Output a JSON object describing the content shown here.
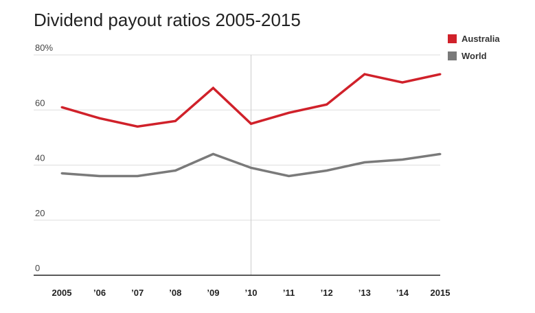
{
  "chart_data": {
    "type": "line",
    "title": "Dividend payout ratios 2005-2015",
    "xlabel": "",
    "ylabel": "",
    "categories": [
      "2005",
      "’06",
      "’07",
      "’08",
      "’09",
      "’10",
      "’11",
      "’12",
      "’13",
      "’14",
      "2015"
    ],
    "ylim": [
      0,
      80
    ],
    "yticks": [
      {
        "value": 0,
        "label": "0"
      },
      {
        "value": 20,
        "label": "20"
      },
      {
        "value": 40,
        "label": "40"
      },
      {
        "value": 60,
        "label": "60"
      },
      {
        "value": 80,
        "label": "80%"
      }
    ],
    "grid": true,
    "legend_position": "top-right",
    "series": [
      {
        "name": "Australia",
        "color": "#d0212a",
        "values": [
          61,
          57,
          54,
          56,
          68,
          55,
          59,
          62,
          73,
          70,
          73
        ]
      },
      {
        "name": "World",
        "color": "#7a7a7a",
        "values": [
          37,
          36,
          36,
          38,
          44,
          39,
          36,
          38,
          41,
          42,
          44
        ]
      }
    ],
    "highlight_category": "’10"
  }
}
